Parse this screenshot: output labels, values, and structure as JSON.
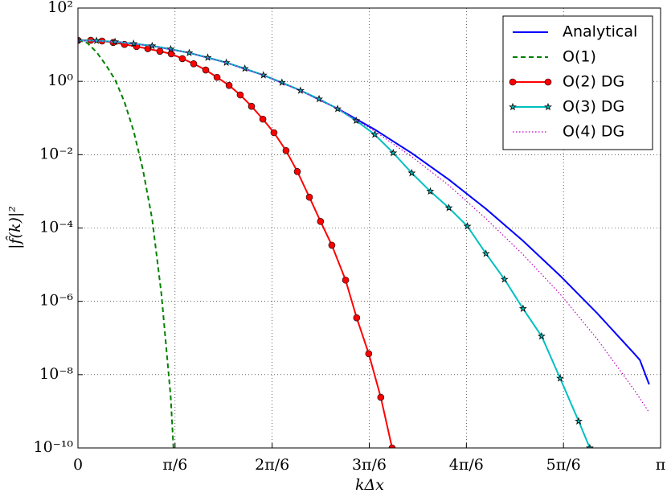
{
  "chart_data": {
    "type": "line",
    "xlabel": "kΔx",
    "ylabel": "|f̂(k)|²",
    "xlim": [
      0,
      3.1416
    ],
    "ylim": [
      1e-10,
      100
    ],
    "yscale": "log",
    "grid": true,
    "legend": "upper right",
    "xticks": [
      0,
      {
        "value": 0.5236,
        "label": "π/6"
      },
      {
        "value": 1.0472,
        "label": "2π/6"
      },
      {
        "value": 1.5708,
        "label": "3π/6"
      },
      {
        "value": 2.0944,
        "label": "4π/6"
      },
      {
        "value": 2.618,
        "label": "5π/6"
      },
      {
        "value": 3.1416,
        "label": "π"
      }
    ],
    "yticks": [
      {
        "value": 1e-10,
        "label": "10⁻¹⁰"
      },
      {
        "value": 1e-08,
        "label": "10⁻⁸"
      },
      {
        "value": 1e-06,
        "label": "10⁻⁶"
      },
      {
        "value": 0.0001,
        "label": "10⁻⁴"
      },
      {
        "value": 0.01,
        "label": "10⁻²"
      },
      {
        "value": 1,
        "label": "10⁰"
      },
      {
        "value": 100,
        "label": "10²"
      }
    ],
    "series": [
      {
        "name": "Analytical",
        "color": "#0000ff",
        "style": "solid",
        "marker": "none",
        "x": [
          0,
          0.2,
          0.4,
          0.6,
          0.8,
          1.0,
          1.2,
          1.4,
          1.6,
          1.8,
          2.0,
          2.2,
          2.4,
          2.6,
          2.8,
          3.0,
          3.03,
          3.08
        ],
        "values": [
          13.2,
          12.1,
          9.29,
          6.0,
          3.25,
          1.48,
          0.565,
          0.181,
          0.0488,
          0.011,
          0.00209,
          0.000333,
          4.45e-05,
          4.99e-06,
          4.7e-07,
          3.72e-08,
          2.5e-08,
          5.4e-09
        ]
      },
      {
        "name": "O(1)",
        "color": "#008000",
        "style": "dashed",
        "marker": "none",
        "x": [
          0,
          0.05,
          0.1,
          0.15,
          0.2,
          0.25,
          0.3,
          0.35,
          0.4,
          0.45,
          0.5,
          0.515
        ],
        "values": [
          13.2,
          11.2,
          6.31,
          2.82,
          1.12,
          0.282,
          0.0447,
          0.00398,
          0.000178,
          1.58e-06,
          2.51e-09,
          1e-10
        ]
      },
      {
        "name": "O(2) DG",
        "color": "#ff0000",
        "style": "solid",
        "marker": "circle",
        "x": [
          0,
          0.069,
          0.13,
          0.19,
          0.251,
          0.316,
          0.377,
          0.442,
          0.503,
          0.563,
          0.624,
          0.689,
          0.75,
          0.815,
          0.875,
          0.936,
          0.997,
          1.057,
          1.122,
          1.183,
          1.248,
          1.308,
          1.369,
          1.443,
          1.503,
          1.568,
          1.633,
          1.694
        ],
        "values": [
          13.2,
          13.2,
          12.6,
          11.5,
          10.2,
          8.91,
          7.76,
          6.61,
          5.62,
          4.17,
          3.02,
          2.04,
          1.29,
          0.776,
          0.427,
          0.209,
          0.0933,
          0.0398,
          0.0129,
          0.00347,
          0.000692,
          0.000151,
          3.39e-05,
          3.8e-06,
          3.55e-07,
          3.72e-08,
          2.4e-09,
          1e-10
        ]
      },
      {
        "name": "O(3) DG",
        "color": "#00bfbf",
        "style": "solid",
        "marker": "star",
        "x": [
          0,
          0.1,
          0.2,
          0.3,
          0.4,
          0.5,
          0.6,
          0.7,
          0.8,
          0.9,
          1.0,
          1.1,
          1.2,
          1.3,
          1.4,
          1.5,
          1.6,
          1.7,
          1.8,
          1.9,
          2.0,
          2.1,
          2.2,
          2.3,
          2.4,
          2.5,
          2.6,
          2.7,
          2.76
        ],
        "values": [
          13.2,
          12.9,
          12.0,
          10.7,
          9.29,
          7.59,
          6.0,
          4.47,
          3.25,
          2.24,
          1.48,
          0.933,
          0.562,
          0.331,
          0.178,
          0.0851,
          0.0355,
          0.0112,
          0.00316,
          0.001,
          0.000355,
          0.000112,
          2e-05,
          3.98e-06,
          6.31e-07,
          1.12e-07,
          7.94e-09,
          5.37e-10,
          1e-10
        ]
      },
      {
        "name": "O(4) DG",
        "color": "#bf00bf",
        "style": "dotted",
        "marker": "none",
        "x": [
          0,
          0.2,
          0.4,
          0.6,
          0.8,
          1.0,
          1.2,
          1.4,
          1.6,
          1.8,
          2.0,
          2.2,
          2.4,
          2.6,
          2.8,
          3.0,
          3.08
        ],
        "values": [
          13.2,
          12.1,
          9.29,
          6.0,
          3.25,
          1.48,
          0.565,
          0.181,
          0.0437,
          0.00881,
          0.00145,
          0.00018,
          1.88e-05,
          1.58e-06,
          9.3e-08,
          3.8e-09,
          9.3e-10
        ]
      }
    ]
  }
}
